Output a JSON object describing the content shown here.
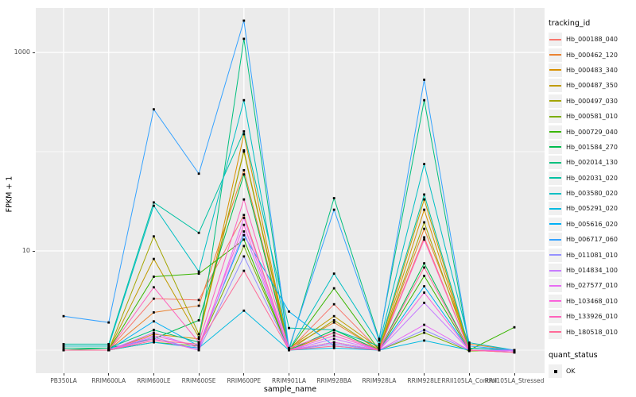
{
  "chart_data": {
    "type": "line",
    "title": "",
    "xlabel": "sample_name",
    "ylabel": "FPKM + 1",
    "y_scale": "log10",
    "ylim": [
      0.6,
      2800
    ],
    "grid": "on",
    "legend_position": "right",
    "panel_background": "#EBEBEB",
    "gridline_color": "#FFFFFF",
    "point_color": "#000000",
    "y_ticks": [
      {
        "value": 10,
        "label": "10"
      },
      {
        "value": 1000,
        "label": "1000"
      }
    ],
    "y_minor_gridlines": [
      1,
      100
    ],
    "categories": [
      "PB350LA",
      "RRIM600LA",
      "RRIM600LE",
      "RRIM600SE",
      "RRIM600PE",
      "RRIM901LA",
      "RRIM928BA",
      "RRIM928LA",
      "RRIM928LE",
      "RRII105LA_Control",
      "RRII105LA_Stressed"
    ],
    "series": [
      {
        "name": "Hb_000188_040",
        "color": "#F8766D",
        "values": [
          1.0,
          1.0,
          3.3,
          3.2,
          23,
          1.0,
          2.9,
          1.0,
          13.7,
          1.0,
          0.98
        ]
      },
      {
        "name": "Hb_000462_120",
        "color": "#EA8331",
        "values": [
          1.0,
          1.0,
          2.4,
          2.8,
          65,
          1.05,
          1.9,
          1.0,
          16.7,
          1.15,
          1.0
        ]
      },
      {
        "name": "Hb_000483_340",
        "color": "#D89000",
        "values": [
          1.0,
          1.0,
          1.45,
          1.3,
          150,
          1.0,
          1.5,
          1.0,
          26,
          1.0,
          1.0
        ]
      },
      {
        "name": "Hb_000487_350",
        "color": "#C09B00",
        "values": [
          1.0,
          1.0,
          8.3,
          1.35,
          103,
          1.05,
          2.2,
          1.05,
          33,
          1.0,
          1.0
        ]
      },
      {
        "name": "Hb_000497_030",
        "color": "#A3A500",
        "values": [
          1.0,
          1.0,
          14.0,
          1.45,
          100,
          1.0,
          2.0,
          1.0,
          19.4,
          1.0,
          1.0
        ]
      },
      {
        "name": "Hb_000581_010",
        "color": "#7CAE00",
        "values": [
          1.0,
          1.0,
          1.2,
          1.1,
          11.2,
          1.0,
          1.2,
          1.0,
          1.5,
          0.98,
          1.0
        ]
      },
      {
        "name": "Hb_000729_040",
        "color": "#39B600",
        "values": [
          1.0,
          1.0,
          5.5,
          5.9,
          13.0,
          1.0,
          4.2,
          1.0,
          5.6,
          1.0,
          1.7
        ]
      },
      {
        "name": "Hb_001584_270",
        "color": "#00BB4E",
        "values": [
          1.0,
          1.05,
          1.3,
          2.0,
          59,
          1.0,
          1.6,
          1.0,
          7.5,
          1.0,
          1.0
        ]
      },
      {
        "name": "Hb_002014_130",
        "color": "#00BF7D",
        "values": [
          1.05,
          1.05,
          1.6,
          1.2,
          1370,
          1.0,
          34,
          1.3,
          330,
          1.05,
          1.0
        ]
      },
      {
        "name": "Hb_002031_020",
        "color": "#00C1A3",
        "values": [
          1.15,
          1.15,
          30.8,
          15.2,
          160,
          1.67,
          1.6,
          1.1,
          37,
          1.05,
          1.0
        ]
      },
      {
        "name": "Hb_003580_020",
        "color": "#00BFC4",
        "values": [
          1.1,
          1.1,
          28.5,
          6.2,
          330,
          1.0,
          5.9,
          1.15,
          75,
          1.19,
          1.0
        ]
      },
      {
        "name": "Hb_005291_020",
        "color": "#00BAE0",
        "values": [
          1.0,
          1.0,
          1.2,
          1.05,
          2.5,
          1.0,
          1.05,
          1.0,
          1.25,
          1.0,
          0.98
        ]
      },
      {
        "name": "Hb_005616_020",
        "color": "#00B0F6",
        "values": [
          1.0,
          1.0,
          1.95,
          1.1,
          14.4,
          2.45,
          1.1,
          1.0,
          4.4,
          1.0,
          1.0
        ]
      },
      {
        "name": "Hb_006717_060",
        "color": "#35A2FF",
        "values": [
          2.2,
          1.9,
          267,
          60,
          2090,
          1.05,
          26,
          1.25,
          530,
          1.1,
          1.0
        ]
      },
      {
        "name": "Hb_011081_010",
        "color": "#9590FF",
        "values": [
          1.0,
          1.0,
          1.35,
          1.0,
          8.8,
          1.0,
          1.15,
          1.0,
          1.6,
          1.0,
          0.98
        ]
      },
      {
        "name": "Hb_014834_100",
        "color": "#C77CFF",
        "values": [
          1.0,
          1.0,
          1.5,
          1.05,
          15.7,
          1.0,
          1.3,
          1.0,
          3.0,
          1.0,
          1.0
        ]
      },
      {
        "name": "Hb_027577_010",
        "color": "#E76BF3",
        "values": [
          1.0,
          1.0,
          1.3,
          1.0,
          21.5,
          1.0,
          1.2,
          1.0,
          1.8,
          1.0,
          0.98
        ]
      },
      {
        "name": "Hb_103468_010",
        "color": "#FA62DB",
        "values": [
          1.0,
          1.0,
          1.4,
          1.1,
          18.3,
          1.0,
          1.4,
          1.0,
          3.8,
          1.0,
          0.95
        ]
      },
      {
        "name": "Hb_133926_010",
        "color": "#FF62BC",
        "values": [
          1.0,
          1.0,
          4.3,
          1.2,
          33,
          1.05,
          1.5,
          1.0,
          13.0,
          1.0,
          0.95
        ]
      },
      {
        "name": "Hb_180518_010",
        "color": "#FF6A98",
        "values": [
          1.0,
          1.0,
          1.25,
          1.15,
          6.3,
          1.0,
          1.1,
          1.0,
          6.8,
          1.0,
          0.95
        ]
      }
    ]
  },
  "legends": {
    "tracking": {
      "title": "tracking_id"
    },
    "quant": {
      "title": "quant_status",
      "items": [
        {
          "label": "OK"
        }
      ]
    }
  }
}
